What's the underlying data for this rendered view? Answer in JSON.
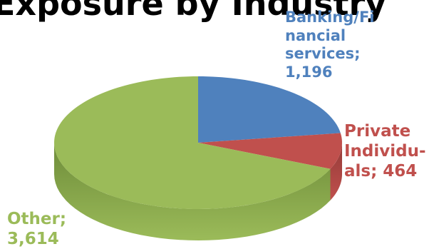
{
  "chart_data": {
    "type": "pie",
    "title": "Exposure by Industry",
    "categories": [
      "Banking/Financial services",
      "Private Individuals",
      "Other"
    ],
    "values": [
      1196,
      464,
      3614
    ],
    "labels": [
      {
        "lines": [
          "Banking/Fi",
          "nancial",
          "services;",
          "1,196"
        ],
        "color": "#4F81BD"
      },
      {
        "lines": [
          "Private",
          "Individu-",
          "als; 464"
        ],
        "color": "#C0504D"
      },
      {
        "lines": [
          "Other;",
          "3,614"
        ],
        "color": "#9BBB59"
      }
    ],
    "colors": {
      "top": [
        "#4F81BD",
        "#C0504D",
        "#9BBB59"
      ],
      "side": [
        "#3A6597",
        "#943B38",
        "#6E8C3A"
      ]
    },
    "style": "3d-exploded-off",
    "legend": "none"
  }
}
